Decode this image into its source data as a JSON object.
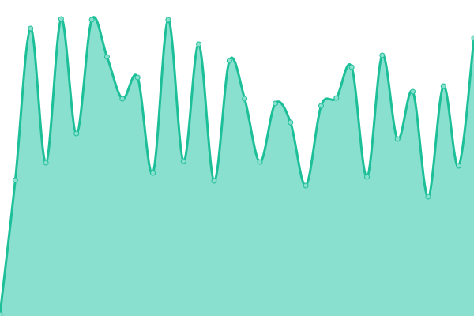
{
  "chart_data": {
    "type": "area",
    "title": "",
    "xlabel": "",
    "ylabel": "",
    "x": [
      0,
      1,
      2,
      3,
      4,
      5,
      6,
      7,
      8,
      9,
      10,
      11,
      12,
      13,
      14,
      15,
      16,
      17,
      18,
      19,
      20,
      21,
      22,
      23,
      24,
      25,
      26,
      27,
      28,
      29,
      30,
      31
    ],
    "values": [
      2,
      172,
      364,
      194,
      376,
      231,
      375,
      328,
      275,
      302,
      181,
      375,
      196,
      344,
      171,
      323,
      275,
      195,
      269,
      245,
      165,
      266,
      276,
      315,
      176,
      330,
      224,
      284,
      151,
      291,
      190,
      352
    ],
    "ylim": [
      0,
      400
    ],
    "grid": false,
    "axes_visible": false,
    "legend": "none",
    "colors": {
      "line": "#1dbf99",
      "fill": "#8ae0cf",
      "marker_fill": "#8ae0cf",
      "marker_stroke": "#1dbf99"
    }
  }
}
